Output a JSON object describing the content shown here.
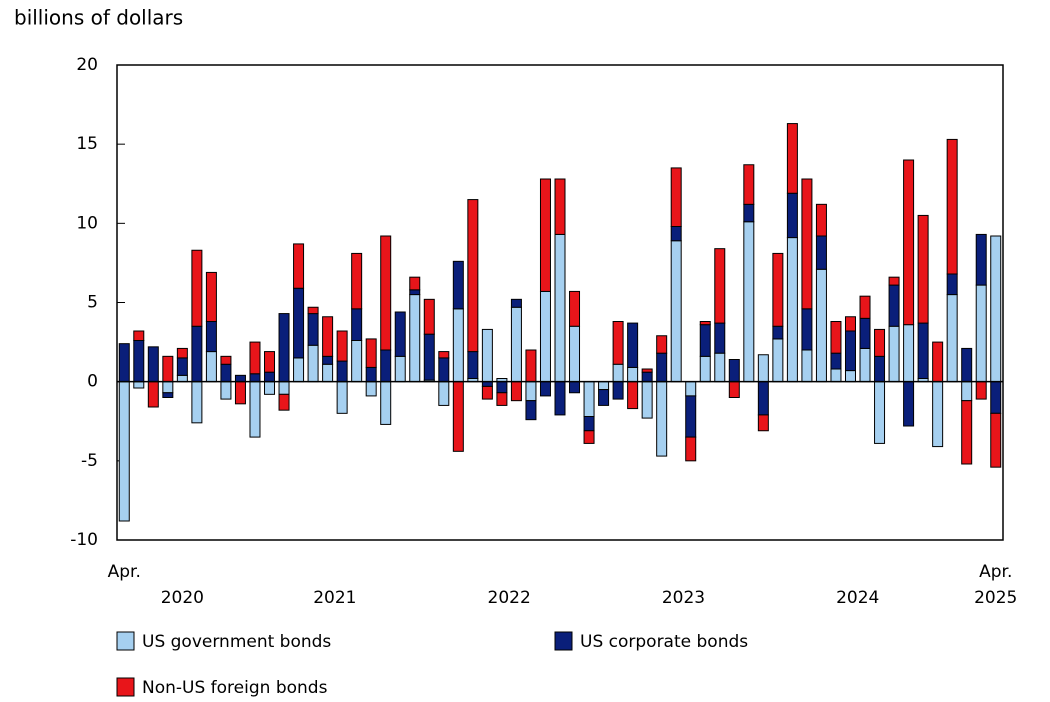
{
  "chart_data": {
    "type": "stacked-bar",
    "y_label": "billions of dollars",
    "x": [
      "2020-04",
      "2020-05",
      "2020-06",
      "2020-07",
      "2020-08",
      "2020-09",
      "2020-10",
      "2020-11",
      "2020-12",
      "2021-01",
      "2021-02",
      "2021-03",
      "2021-04",
      "2021-05",
      "2021-06",
      "2021-07",
      "2021-08",
      "2021-09",
      "2021-10",
      "2021-11",
      "2021-12",
      "2022-01",
      "2022-02",
      "2022-03",
      "2022-04",
      "2022-05",
      "2022-06",
      "2022-07",
      "2022-08",
      "2022-09",
      "2022-10",
      "2022-11",
      "2022-12",
      "2023-01",
      "2023-02",
      "2023-03",
      "2023-04",
      "2023-05",
      "2023-06",
      "2023-07",
      "2023-08",
      "2023-09",
      "2023-10",
      "2023-11",
      "2023-12",
      "2024-01",
      "2024-02",
      "2024-03",
      "2024-04",
      "2024-05",
      "2024-06",
      "2024-07",
      "2024-08",
      "2024-09",
      "2024-10",
      "2024-11",
      "2024-12",
      "2025-01",
      "2025-02",
      "2025-03",
      "2025-04"
    ],
    "x_labels": [
      "Apr.",
      null,
      null,
      null,
      null,
      null,
      null,
      null,
      null,
      null,
      null,
      null,
      null,
      null,
      null,
      null,
      null,
      null,
      null,
      null,
      null,
      null,
      null,
      null,
      null,
      null,
      null,
      null,
      null,
      null,
      null,
      null,
      null,
      null,
      null,
      null,
      null,
      null,
      null,
      null,
      null,
      null,
      null,
      null,
      null,
      null,
      null,
      null,
      null,
      null,
      null,
      null,
      null,
      null,
      null,
      null,
      null,
      null,
      null,
      null,
      "Apr."
    ],
    "year_labels": [
      "2020",
      "2021",
      "2022",
      "2023",
      "2024",
      "2025"
    ],
    "series": [
      {
        "name": "US government bonds",
        "color": "#a6d0f0",
        "values": [
          -8.8,
          -0.4,
          0,
          -0.7,
          0.4,
          -2.6,
          1.9,
          -1.1,
          0,
          -3.5,
          -0.8,
          -0.8,
          1.5,
          2.3,
          1.1,
          -2.0,
          2.6,
          -0.9,
          -2.7,
          1.6,
          5.5,
          0.1,
          -1.5,
          4.6,
          0.2,
          3.3,
          0.2,
          4.7,
          -1.2,
          5.7,
          9.3,
          3.5,
          -2.2,
          -0.5,
          1.1,
          0.9,
          -2.3,
          -4.7,
          8.9,
          -0.9,
          1.6,
          1.8,
          0,
          10.1,
          1.7,
          2.7,
          9.1,
          2.0,
          7.1,
          0.8,
          0.7,
          2.1,
          -3.9,
          3.5,
          3.6,
          0.2,
          -4.1,
          5.5,
          -1.2,
          6.1,
          9.2
        ]
      },
      {
        "name": "US corporate bonds",
        "color": "#0a1f7a",
        "values": [
          2.4,
          2.6,
          2.2,
          -0.3,
          1.1,
          3.5,
          1.9,
          1.1,
          0.4,
          0.5,
          0.6,
          4.3,
          4.4,
          2.0,
          0.5,
          1.3,
          2.0,
          0.9,
          2.0,
          2.8,
          0.3,
          2.9,
          1.5,
          3.0,
          1.7,
          -0.3,
          -0.7,
          0.5,
          -1.2,
          -0.9,
          -2.1,
          -0.7,
          -0.9,
          -1.0,
          -1.1,
          2.8,
          0.6,
          1.8,
          0.9,
          -2.6,
          2.0,
          1.9,
          1.4,
          1.1,
          -2.1,
          0.8,
          2.8,
          2.6,
          2.1,
          1.0,
          2.5,
          1.9,
          1.6,
          2.6,
          -2.8,
          3.5,
          0,
          1.3,
          2.1,
          3.2,
          -2.0
        ]
      },
      {
        "name": "Non-US foreign bonds",
        "color": "#e8151a",
        "values": [
          0,
          0.6,
          -1.6,
          1.6,
          0.6,
          4.8,
          3.1,
          0.5,
          -1.4,
          2.0,
          1.3,
          -1.0,
          2.8,
          0.4,
          2.5,
          1.9,
          3.5,
          1.8,
          7.2,
          0,
          0.8,
          2.2,
          0.4,
          -4.4,
          9.6,
          -0.8,
          -0.8,
          -1.2,
          2.0,
          7.1,
          3.5,
          2.2,
          -0.8,
          0,
          2.7,
          -1.7,
          0.2,
          1.1,
          3.7,
          -1.5,
          0.2,
          4.7,
          -1.0,
          2.5,
          -1.0,
          4.6,
          4.4,
          8.2,
          2.0,
          2.0,
          0.9,
          1.4,
          1.7,
          0.5,
          10.4,
          6.8,
          2.5,
          8.5,
          -4.0,
          -1.1,
          -3.4
        ]
      }
    ],
    "ylim": [
      -10,
      20
    ],
    "yticks": [
      -10,
      -5,
      0,
      5,
      10,
      15,
      20
    ]
  }
}
